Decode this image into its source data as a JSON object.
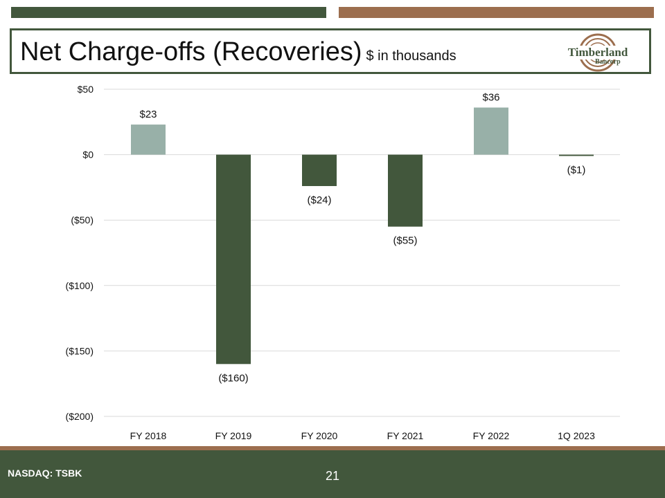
{
  "header": {
    "title": "Net Charge-offs (Recoveries)",
    "subtitle": "$ in thousands"
  },
  "logo": {
    "name": "Timberland",
    "sub": "Bancorp"
  },
  "colors": {
    "positive": "#98b0a8",
    "negative": "#42573c",
    "accent_green": "#42573c",
    "accent_brown": "#9c6e4e",
    "grid": "#d9d9d9"
  },
  "chart_data": {
    "type": "bar",
    "title": "Net Charge-offs (Recoveries)",
    "subtitle": "$ in thousands",
    "categories": [
      "FY 2018",
      "FY 2019",
      "FY 2020",
      "FY 2021",
      "FY 2022",
      "1Q 2023"
    ],
    "values": [
      23,
      -160,
      -24,
      -55,
      36,
      -1
    ],
    "data_labels": [
      "$23",
      "($160)",
      "($24)",
      "($55)",
      "$36",
      "($1)"
    ],
    "y_ticks": [
      50,
      0,
      -50,
      -100,
      -150,
      -200
    ],
    "y_tick_labels": [
      "$50",
      "$0",
      "($50)",
      "($100)",
      "($150)",
      "($200)"
    ],
    "ylim": [
      -200,
      50
    ],
    "xlabel": "",
    "ylabel": "",
    "grid": true
  },
  "footer": {
    "ticker": "NASDAQ: TSBK",
    "page": "21"
  }
}
